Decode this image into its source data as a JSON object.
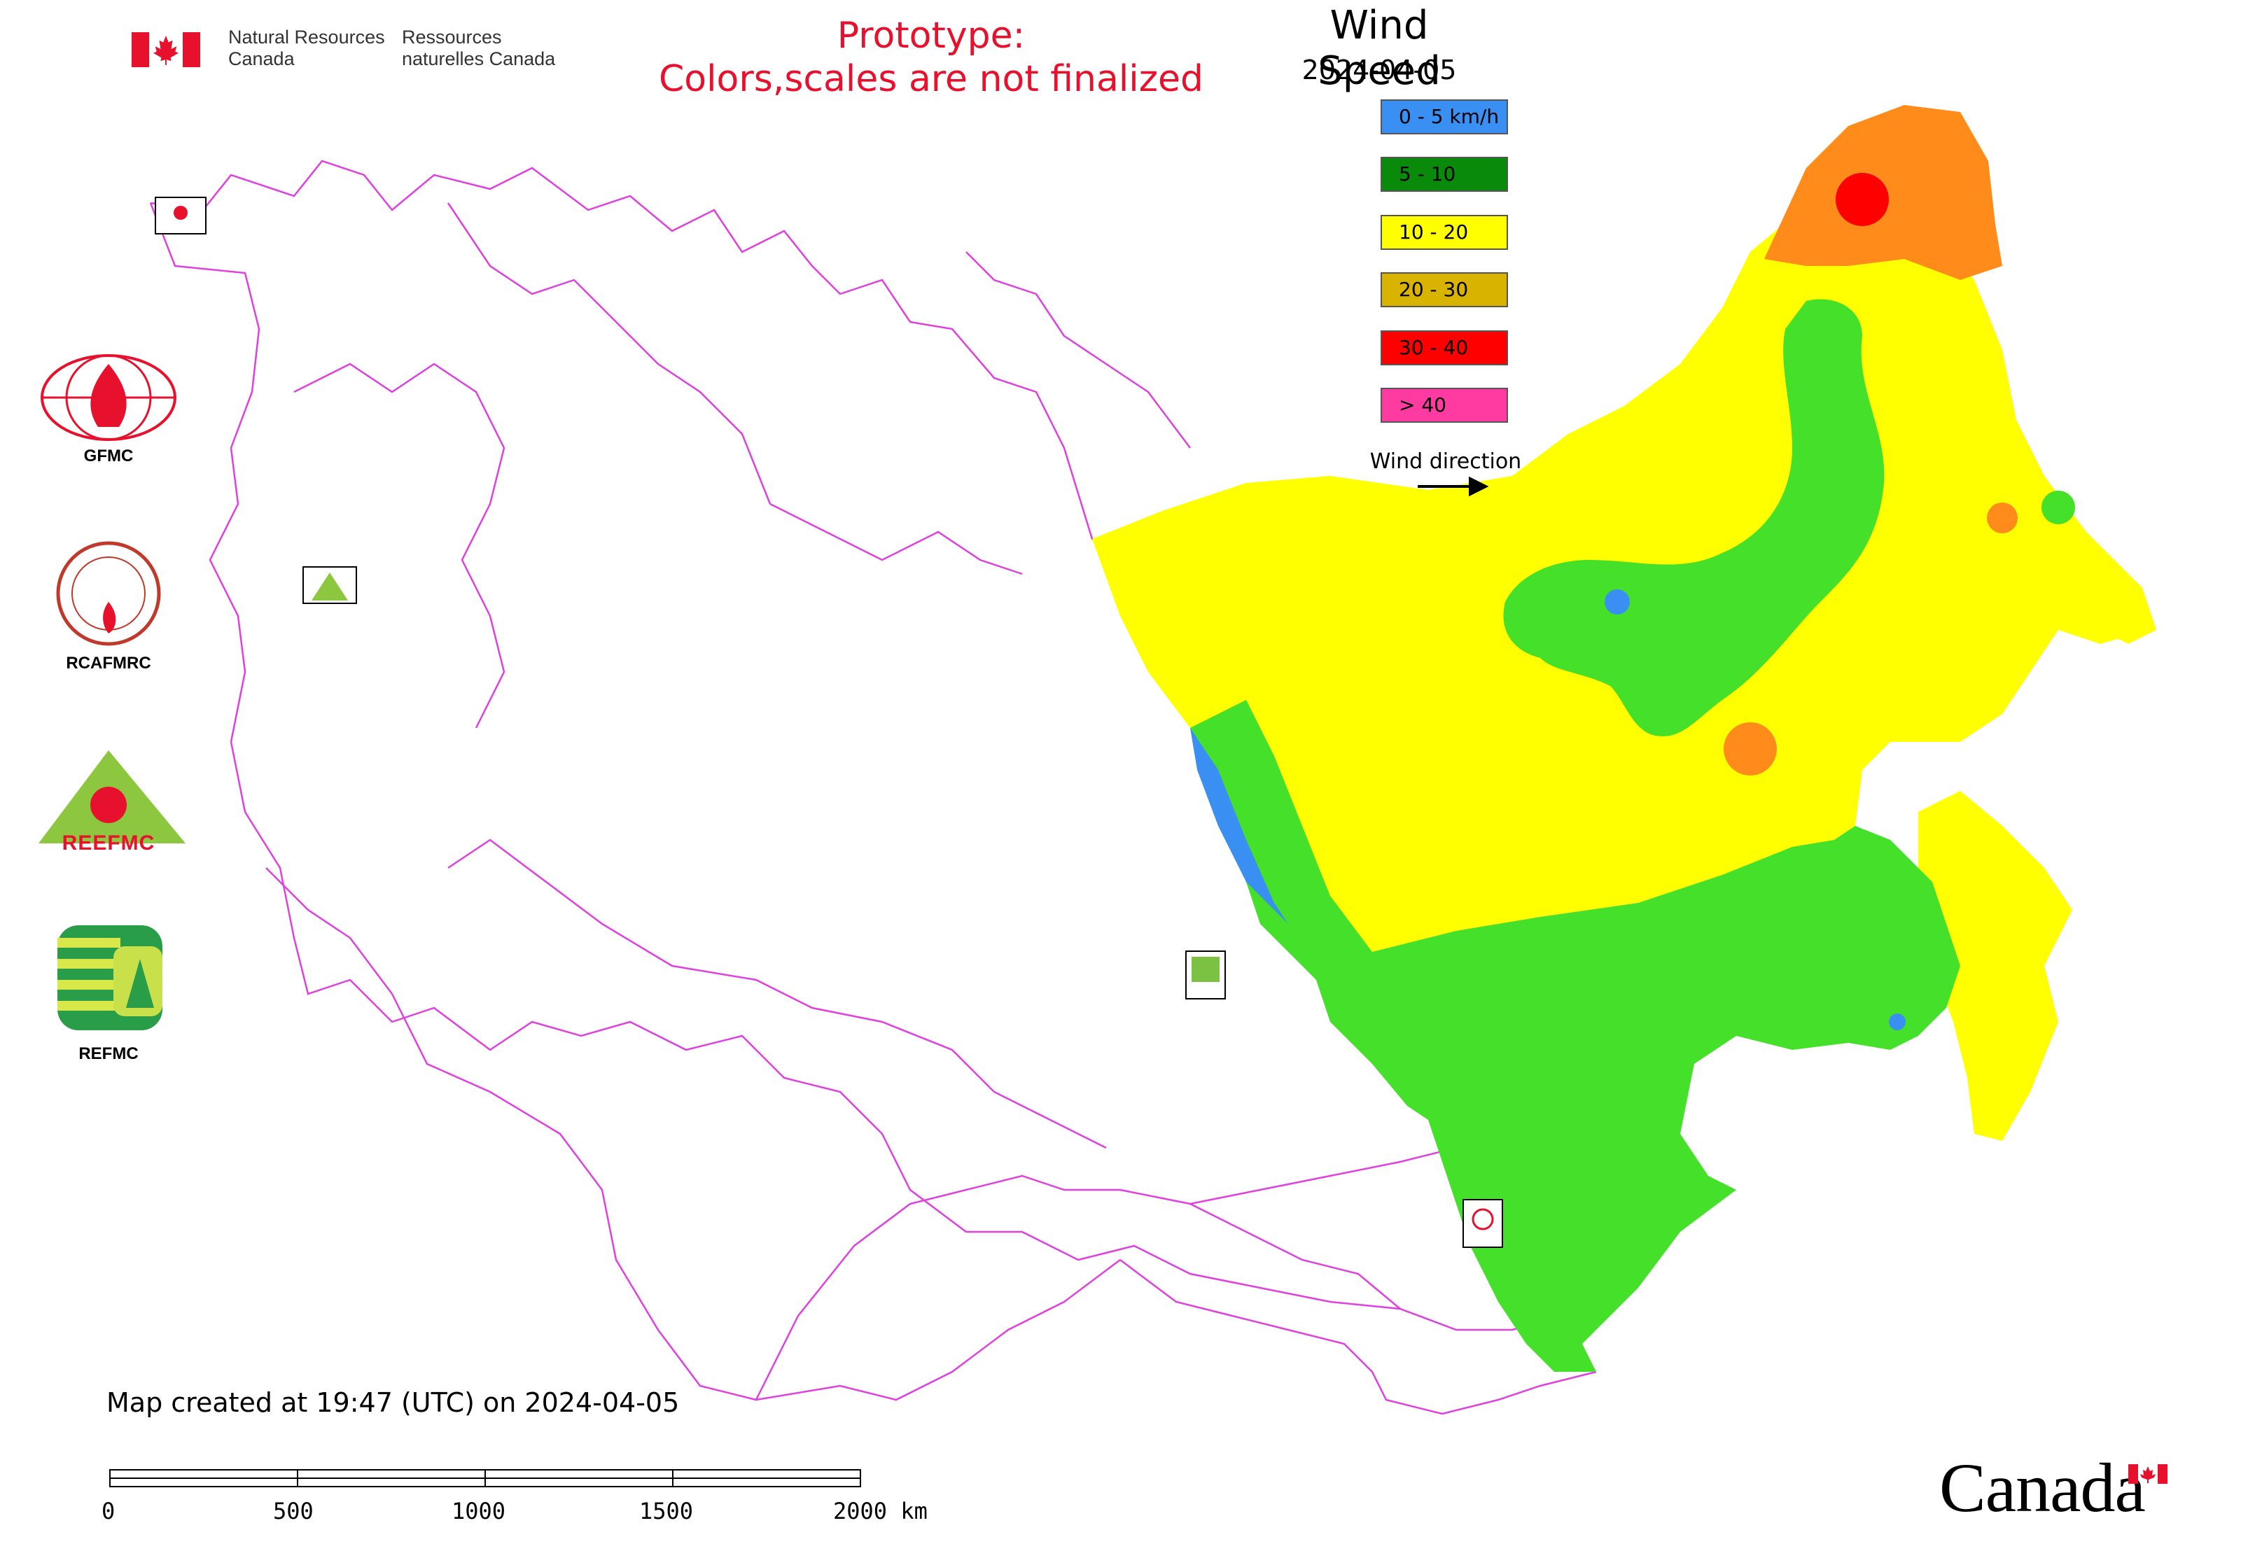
{
  "header": {
    "agency_en": "Natural Resources Canada",
    "agency_fr": "Ressources naturelles Canada",
    "prototype_line1": "Prototype:",
    "prototype_line2": "Colors,scales are not finalized"
  },
  "legend": {
    "title": "Wind Speed",
    "date": "2024-04-05",
    "items": [
      {
        "label": "0 - 5 km/h",
        "color": "#3a8ff2"
      },
      {
        "label": "5 - 10",
        "color": "#0a8a0a"
      },
      {
        "label": "10 - 20",
        "color": "#ffff00"
      },
      {
        "label": "20 - 30",
        "color": "#d8b400"
      },
      {
        "label": "30 - 40",
        "color": "#ff0000"
      },
      {
        "label": "> 40",
        "color": "#ff3aa0"
      }
    ],
    "wind_direction_label": "Wind direction"
  },
  "logos": [
    {
      "name": "GFMC"
    },
    {
      "name": "RCAFMRC"
    },
    {
      "name": "REEFMC"
    },
    {
      "name": "REFMC"
    }
  ],
  "map": {
    "zone_colors": {
      "calm": "#3a8ff2",
      "light": "#44e02a",
      "moderate": "#ffff00",
      "fresh": "#ff8c1a",
      "strong": "#ff0000"
    },
    "border_color": "#e040e0"
  },
  "footer": {
    "created": "Map created at 19:47 (UTC) on 2024-04-05",
    "scale_labels": [
      "0",
      "500",
      "1000",
      "1500",
      "2000 km"
    ],
    "wordmark": "Canada"
  }
}
